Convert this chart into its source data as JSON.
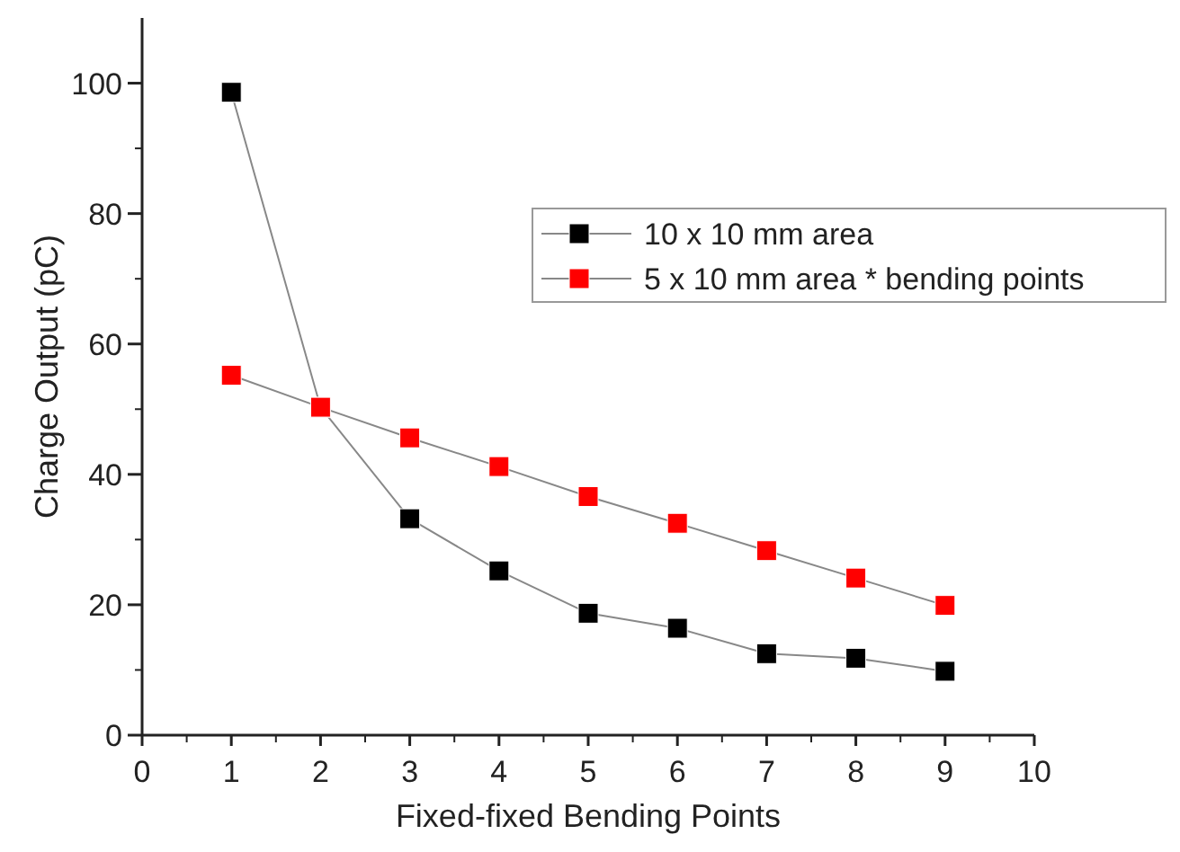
{
  "chart_data": {
    "type": "line",
    "xlabel": "Fixed-fixed Bending Points",
    "ylabel": "Charge Output (pC)",
    "x": [
      1,
      2,
      3,
      4,
      5,
      6,
      7,
      8,
      9
    ],
    "series": [
      {
        "name": "10 x 10 mm area",
        "color": "#000000",
        "values": [
          98.6,
          50.3,
          33.2,
          25.2,
          18.7,
          16.4,
          12.5,
          11.8,
          9.8
        ]
      },
      {
        "name": "5 x 10 mm area * bending points",
        "color": "#ff0000",
        "values": [
          55.2,
          50.3,
          45.6,
          41.2,
          36.6,
          32.5,
          28.3,
          24.1,
          19.9
        ]
      }
    ],
    "xlim": [
      0,
      10
    ],
    "xticks": [
      0,
      1,
      2,
      3,
      4,
      5,
      6,
      7,
      8,
      9,
      10
    ],
    "ylim": [
      0,
      110
    ],
    "yticks": [
      0,
      20,
      40,
      60,
      80,
      100
    ],
    "grid": false,
    "legend": "top right",
    "marker": "square",
    "line_style": "solid"
  }
}
